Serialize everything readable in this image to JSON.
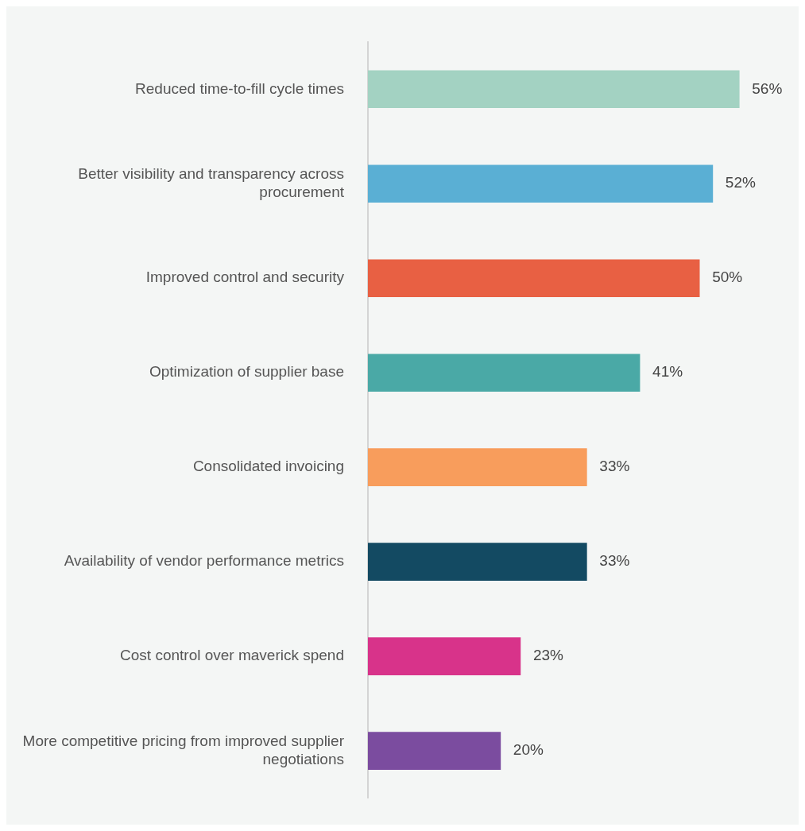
{
  "chart_data": {
    "type": "bar",
    "orientation": "horizontal",
    "tick_labels": "y",
    "categories": [
      "Reduced time-to-fill cycle times",
      "Better visibility and transparency across procurement",
      "Improved control and security",
      "Optimization of supplier base",
      "Consolidated invoicing",
      "Availability of vendor performance metrics",
      "Cost control over maverick spend",
      "More competitive pricing from improved supplier negotiations"
    ],
    "values": [
      56,
      52,
      50,
      41,
      33,
      33,
      23,
      20
    ],
    "value_labels": [
      "56%",
      "52%",
      "50%",
      "41%",
      "33%",
      "33%",
      "23%",
      "20%"
    ],
    "colors": [
      "#a3d2c2",
      "#5aafd4",
      "#e86043",
      "#4aa9a6",
      "#f89d5c",
      "#134a62",
      "#d8338a",
      "#7b4c9f"
    ]
  }
}
